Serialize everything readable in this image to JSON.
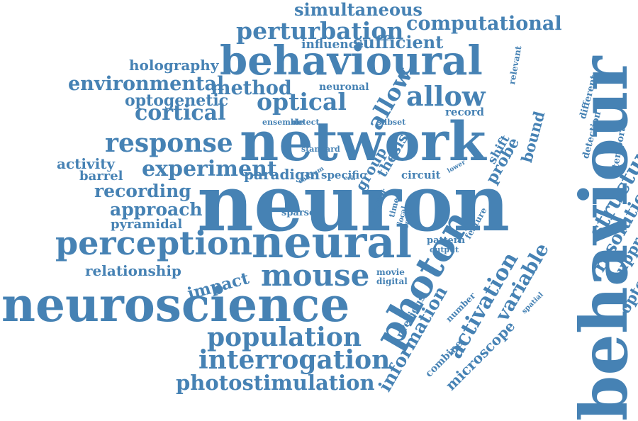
{
  "word_color": "#4682b4",
  "background": "#ffffff",
  "words": [
    "simultaneous",
    "perturbation",
    "computational",
    "influence",
    "sufficient",
    "behavioural",
    "holography",
    "environmental",
    "method",
    "optogenetic",
    "optical",
    "neuronal",
    "allow",
    "cortical",
    "ensemble",
    "detect",
    "subset",
    "record",
    "response",
    "network",
    "standard",
    "activity",
    "barrel",
    "experiment",
    "paradigm",
    "calcium",
    "specific",
    "group",
    "thesis",
    "cell",
    "lower",
    "shift",
    "probe",
    "bound",
    "many",
    "circuit",
    "recording",
    "sensor",
    "goal",
    "time",
    "neuron",
    "approach",
    "sparse",
    "local",
    "order",
    "feature",
    "pyramidal",
    "perception",
    "neural",
    "pattern",
    "output",
    "relationship",
    "impact",
    "mouse",
    "movie",
    "digital",
    "photon",
    "neuroscience",
    "previous",
    "population",
    "information",
    "activation",
    "variable",
    "number",
    "combine",
    "microscope",
    "spatial",
    "interrogation",
    "photostimulation",
    "behaviour",
    "relevant",
    "different",
    "detection",
    "temporal",
    "structure",
    "resolution",
    "suppression",
    "optogenetics"
  ]
}
